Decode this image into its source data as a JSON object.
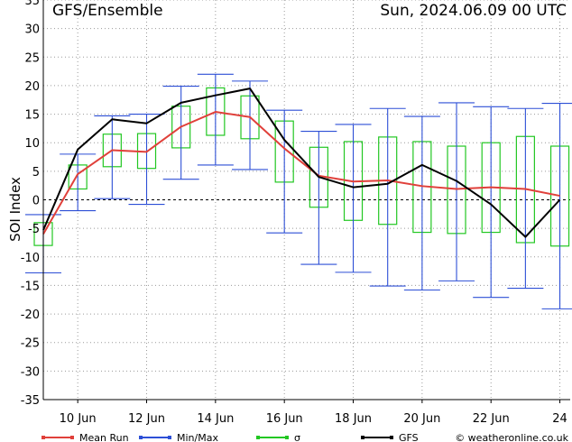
{
  "header": {
    "title": "GFS/Ensemble",
    "run": "Sun, 2024.06.09   00 UTC"
  },
  "footer": {
    "credit": "© weatheronline.co.uk"
  },
  "chart_data": {
    "type": "line",
    "ylabel": "SOI Index",
    "xlabel": "",
    "ylim": [
      -35,
      35
    ],
    "yticks": [
      -35,
      -30,
      -25,
      -20,
      -15,
      -10,
      -5,
      0,
      5,
      10,
      15,
      20,
      25,
      30,
      35
    ],
    "xticks": [
      {
        "day": 10,
        "label": "10 Jun"
      },
      {
        "day": 12,
        "label": "12 Jun"
      },
      {
        "day": 14,
        "label": "14 Jun"
      },
      {
        "day": 16,
        "label": "16 Jun"
      },
      {
        "day": 18,
        "label": "18 Jun"
      },
      {
        "day": 20,
        "label": "20 Jun"
      },
      {
        "day": 22,
        "label": "22 Jun"
      },
      {
        "day": 24,
        "label": "24"
      }
    ],
    "xlim": [
      9.0,
      24.3
    ],
    "grid": true,
    "legend_position": "bottom",
    "x": [
      9.0,
      10.0,
      11.0,
      12.0,
      13.0,
      14.0,
      15.0,
      16.0,
      17.0,
      18.0,
      19.0,
      20.0,
      21.0,
      22.0,
      23.0,
      24.0
    ],
    "series": [
      {
        "name": "Mean Run",
        "color": "#e0403a",
        "values": [
          -6.0,
          4.5,
          8.7,
          8.4,
          12.8,
          15.4,
          14.5,
          9.0,
          4.2,
          3.2,
          3.4,
          2.4,
          1.9,
          2.2,
          1.9,
          0.7
        ]
      },
      {
        "name": "GFS",
        "color": "#000000",
        "values": [
          -5.3,
          8.8,
          14.1,
          13.4,
          17.0,
          18.3,
          19.5,
          10.5,
          4.0,
          2.2,
          2.8,
          6.1,
          3.3,
          -0.8,
          -6.5,
          0.0
        ]
      },
      {
        "name": "Min/Max",
        "color": "#2d4fd6",
        "min": [
          -12.8,
          -1.9,
          0.2,
          -0.8,
          3.6,
          6.1,
          5.3,
          -5.8,
          -11.3,
          -12.7,
          -15.1,
          -15.8,
          -14.2,
          -17.1,
          -15.5,
          -19.1
        ],
        "max": [
          -2.6,
          8.0,
          14.7,
          15.0,
          19.9,
          22.0,
          20.8,
          15.7,
          12.0,
          13.2,
          16.0,
          14.6,
          17.0,
          16.3,
          16.0,
          16.9
        ]
      },
      {
        "name": "σ",
        "color": "#22c722",
        "low": [
          -8.0,
          1.9,
          5.8,
          5.5,
          9.1,
          11.3,
          10.7,
          3.1,
          -1.3,
          -3.6,
          -4.3,
          -5.7,
          -5.9,
          -5.7,
          -7.5,
          -8.1
        ],
        "high": [
          -4.0,
          6.1,
          11.5,
          11.6,
          16.4,
          19.6,
          18.2,
          13.8,
          9.2,
          10.2,
          11.0,
          10.2,
          9.4,
          10.0,
          11.1,
          9.4
        ]
      }
    ],
    "legend": [
      {
        "label": "Mean Run",
        "color": "#e0403a"
      },
      {
        "label": "Min/Max",
        "color": "#2d4fd6"
      },
      {
        "label": "σ",
        "color": "#22c722"
      },
      {
        "label": "GFS",
        "color": "#000000"
      }
    ]
  }
}
